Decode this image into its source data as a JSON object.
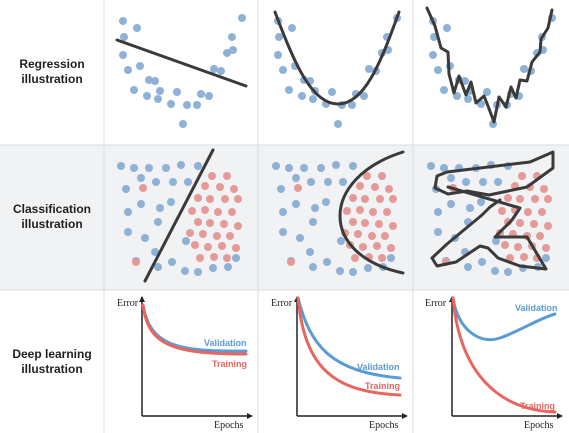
{
  "rows": [
    {
      "line1": "Regression",
      "line2": "illustration"
    },
    {
      "line1": "Classification",
      "line2": "illustration"
    },
    {
      "line1": "Deep learning",
      "line2": "illustration"
    }
  ],
  "deep_learning": {
    "y_label": "Error",
    "x_label": "Epochs",
    "validation_label": "Validation",
    "training_label": "Training"
  },
  "colors": {
    "blue_point": "#8fb1d6",
    "red_point": "#e59a98",
    "validation": "#5b9bd5",
    "training": "#e8665e",
    "curve": "#3a3a3a",
    "row_shade": "#f0f2f4",
    "grid": "#d8dde2"
  }
}
